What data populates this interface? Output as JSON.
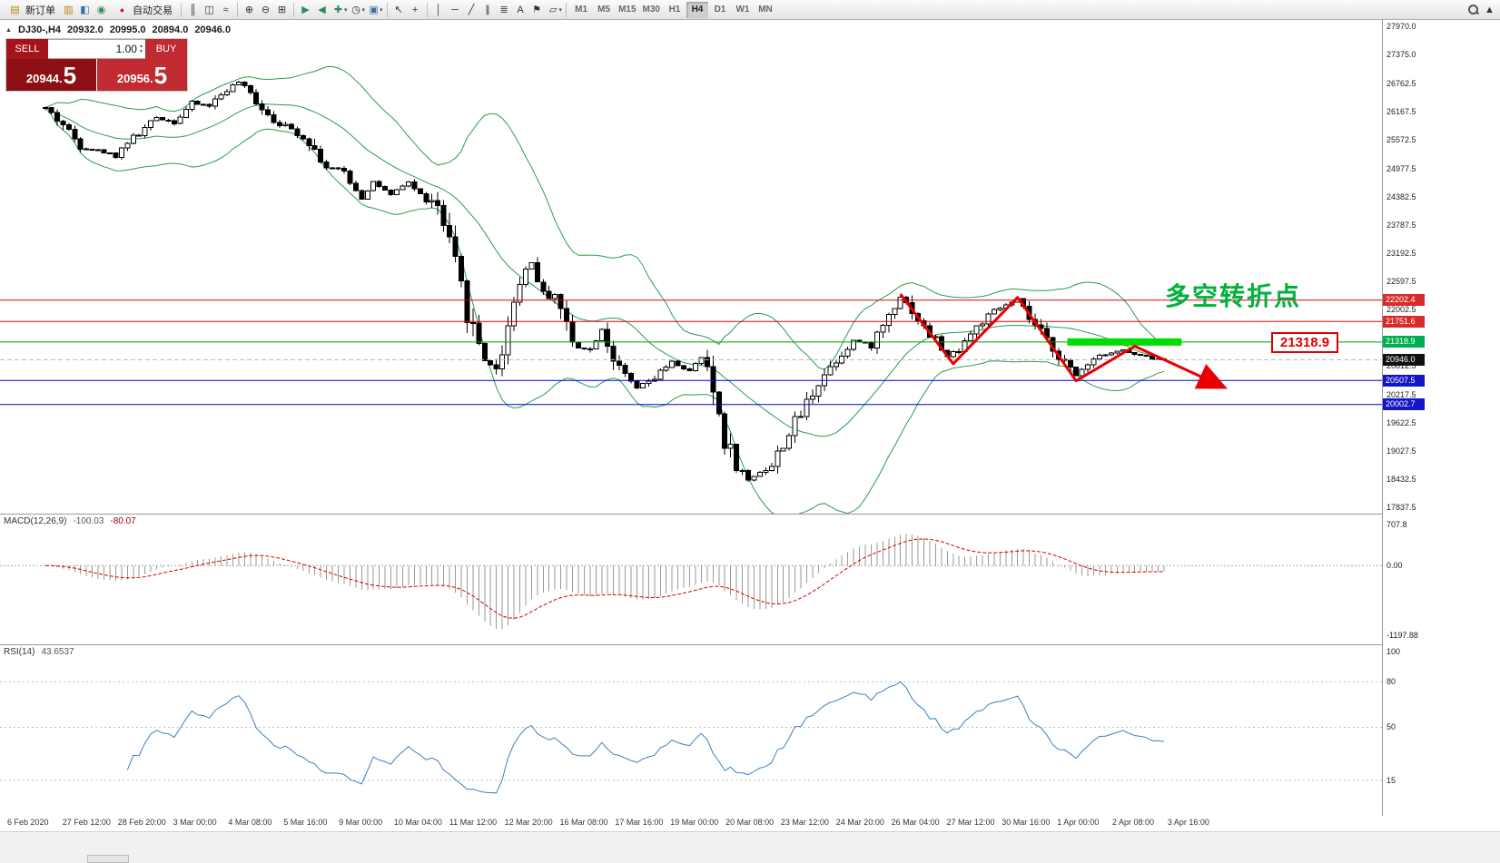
{
  "toolbar": {
    "new_order_label": "新订单",
    "auto_trading_label": "自动交易",
    "timeframes": [
      {
        "label": "M1",
        "active": false
      },
      {
        "label": "M5",
        "active": false
      },
      {
        "label": "M15",
        "active": false
      },
      {
        "label": "M30",
        "active": false
      },
      {
        "label": "H1",
        "active": false
      },
      {
        "label": "H4",
        "active": true
      },
      {
        "label": "D1",
        "active": false
      },
      {
        "label": "W1",
        "active": false
      },
      {
        "label": "MN",
        "active": false
      }
    ]
  },
  "icons": {
    "new_order": "▤",
    "market_watch": "▥",
    "data_window": "◧",
    "navigator": "◉",
    "auto_trading": "●",
    "chart_bars": "║",
    "chart_candles": "◫",
    "chart_line": "≈",
    "zoom_in": "⊕",
    "zoom_out": "⊖",
    "tile_windows": "⊞",
    "auto_scroll": "▶",
    "chart_shift": "◀",
    "indicators": "✚",
    "periods": "◷",
    "templates": "▣",
    "cursor": "↖",
    "crosshair": "+",
    "vline": "│",
    "hline": "─",
    "trendline": "╱",
    "channel": "∥",
    "fibonacci": "≣",
    "text_tool": "A",
    "label_tool": "⚑",
    "shapes": "▱",
    "caret": "▾",
    "scroll_up": "▲",
    "collapse": "▲",
    "spin_up": "▴",
    "spin_down": "▾"
  },
  "symbol_info": {
    "collapse": "▲",
    "symbol": "DJ30-,H4",
    "open": "20932.0",
    "high": "20995.0",
    "low": "20894.0",
    "close": "20946.0"
  },
  "quote_panel": {
    "sell_label": "SELL",
    "buy_label": "BUY",
    "volume": "1.00",
    "sell_price_main": "20944.",
    "sell_price_big": "5",
    "buy_price_main": "20956.",
    "buy_price_big": "5"
  },
  "price_axis": {
    "top_price": 27970.0,
    "bottom_price": 17837.5,
    "labels": [
      "27970.0",
      "27375.0",
      "26762.5",
      "26167.5",
      "25572.5",
      "24977.5",
      "24382.5",
      "23787.5",
      "23192.5",
      "22597.5",
      "22002.5",
      "20812.5",
      "20217.5",
      "19622.5",
      "19027.5",
      "18432.5",
      "17837.5"
    ],
    "tagged": [
      {
        "text": "22202.4",
        "price": 22202.4,
        "bg": "#d92b2b"
      },
      {
        "text": "21751.6",
        "price": 21751.6,
        "bg": "#d92b2b"
      },
      {
        "text": "21318.9",
        "price": 21318.9,
        "bg": "#00b050"
      },
      {
        "text": "20946.0",
        "price": 20946.0,
        "bg": "#111111"
      },
      {
        "text": "20507.5",
        "price": 20507.5,
        "bg": "#1414c8"
      },
      {
        "text": "20002.7",
        "price": 20002.7,
        "bg": "#1414c8"
      }
    ]
  },
  "hlines": [
    {
      "price": 22202.4,
      "color": "#e00000"
    },
    {
      "price": 21751.6,
      "color": "#e00000"
    },
    {
      "price": 21318.9,
      "color": "#00a000"
    },
    {
      "price": 20507.5,
      "color": "#0000dd"
    },
    {
      "price": 20002.7,
      "color": "#0000dd"
    }
  ],
  "macd": {
    "name": "MACD(12,26,9)",
    "value": "-100.03",
    "signal": "-80.07",
    "max": 707.8,
    "min": -1197.88,
    "scale": [
      {
        "text": "707.8",
        "v": 707.8
      },
      {
        "text": "0.00",
        "v": 0
      },
      {
        "text": "-1197.88",
        "v": -1197.88
      }
    ]
  },
  "rsi": {
    "name": "RSI(14)",
    "value": "43.6537",
    "scale": [
      {
        "text": "100",
        "v": 100
      },
      {
        "text": "80",
        "v": 80
      },
      {
        "text": "50",
        "v": 50
      },
      {
        "text": "15",
        "v": 15
      }
    ],
    "levels": [
      80,
      50,
      15
    ]
  },
  "time_axis": [
    "6 Feb 2020",
    "27 Feb 12:00",
    "28 Feb 20:00",
    "3 Mar 00:00",
    "4 Mar 08:00",
    "5 Mar 16:00",
    "9 Mar 00:00",
    "10 Mar 04:00",
    "11 Mar 12:00",
    "12 Mar 20:00",
    "16 Mar 08:00",
    "17 Mar 16:00",
    "19 Mar 00:00",
    "20 Mar 08:00",
    "23 Mar 12:00",
    "24 Mar 20:00",
    "26 Mar 04:00",
    "27 Mar 12:00",
    "30 Mar 16:00",
    "1 Apr 00:00",
    "2 Apr 08:00",
    "3 Apr 16:00"
  ],
  "annotations": {
    "turning_point_text": "多空转折点",
    "level_label": "21318.9",
    "green_segment": {
      "price": 21318.9,
      "i0": 174.5,
      "i1": 194
    },
    "trend_arrow_points": [
      [
        146,
        22330
      ],
      [
        155,
        20860
      ],
      [
        166,
        22260
      ],
      [
        176,
        20500
      ],
      [
        186,
        21230
      ],
      [
        201,
        20380
      ]
    ]
  },
  "chart_data": {
    "type": "candlestick",
    "symbol": "DJ30-",
    "timeframe": "H4",
    "ohlc_last": {
      "open": 20932.0,
      "high": 20995.0,
      "low": 20894.0,
      "close": 20946.0
    },
    "candles": 192,
    "price_waypoints": [
      [
        0,
        26250
      ],
      [
        3,
        25900
      ],
      [
        6,
        25450
      ],
      [
        9,
        25350
      ],
      [
        12,
        25250
      ],
      [
        14,
        25550
      ],
      [
        16,
        25700
      ],
      [
        19,
        26050
      ],
      [
        22,
        25950
      ],
      [
        25,
        26350
      ],
      [
        28,
        26300
      ],
      [
        31,
        26650
      ],
      [
        33,
        26800
      ],
      [
        36,
        26400
      ],
      [
        39,
        26000
      ],
      [
        42,
        25800
      ],
      [
        45,
        25550
      ],
      [
        48,
        25000
      ],
      [
        51,
        24900
      ],
      [
        54,
        24350
      ],
      [
        56,
        24700
      ],
      [
        59,
        24400
      ],
      [
        62,
        24700
      ],
      [
        64,
        24400
      ],
      [
        67,
        24150
      ],
      [
        69,
        23300
      ],
      [
        71,
        22400
      ],
      [
        73,
        21600
      ],
      [
        75,
        21000
      ],
      [
        77,
        20700
      ],
      [
        79,
        21700
      ],
      [
        81,
        22700
      ],
      [
        83,
        23000
      ],
      [
        85,
        22300
      ],
      [
        87,
        22350
      ],
      [
        90,
        21300
      ],
      [
        93,
        21150
      ],
      [
        95,
        21600
      ],
      [
        98,
        20700
      ],
      [
        101,
        20350
      ],
      [
        104,
        20550
      ],
      [
        107,
        20900
      ],
      [
        110,
        20700
      ],
      [
        112,
        21000
      ],
      [
        114,
        20300
      ],
      [
        116,
        19300
      ],
      [
        118,
        18750
      ],
      [
        120,
        18400
      ],
      [
        122,
        18600
      ],
      [
        124,
        18700
      ],
      [
        126,
        19200
      ],
      [
        129,
        19800
      ],
      [
        132,
        20500
      ],
      [
        135,
        20950
      ],
      [
        138,
        21350
      ],
      [
        141,
        21250
      ],
      [
        144,
        21900
      ],
      [
        146,
        22280
      ],
      [
        148,
        22000
      ],
      [
        150,
        21600
      ],
      [
        152,
        21350
      ],
      [
        154,
        21000
      ],
      [
        156,
        21200
      ],
      [
        158,
        21500
      ],
      [
        160,
        21750
      ],
      [
        162,
        21950
      ],
      [
        164,
        22100
      ],
      [
        166,
        22200
      ],
      [
        168,
        21800
      ],
      [
        170,
        21500
      ],
      [
        172,
        21200
      ],
      [
        174,
        20900
      ],
      [
        176,
        20600
      ],
      [
        178,
        20900
      ],
      [
        180,
        21050
      ],
      [
        182,
        21100
      ],
      [
        184,
        21150
      ],
      [
        186,
        21050
      ],
      [
        188,
        21000
      ],
      [
        190,
        20950
      ],
      [
        191,
        20946
      ]
    ],
    "indicators": {
      "bollinger": {
        "period": 20,
        "deviation": 2
      },
      "macd": {
        "fast": 12,
        "slow": 26,
        "signal": 9,
        "value": -100.03,
        "signal_value": -80.07
      },
      "rsi": {
        "period": 14,
        "value": 43.6537
      }
    },
    "horizontal_levels": [
      22202.4,
      21751.6,
      21318.9,
      20507.5,
      20002.7
    ]
  },
  "colors": {
    "bands": "#2a9d4e",
    "bull": "#ffffff",
    "bear": "#000000",
    "hline_red": "#e00000",
    "hline_green": "#00a000",
    "hline_blue": "#0000dd",
    "bid_dash": "#b8b8b8",
    "macd_hist": "#9a9a9a",
    "macd_signal": "#d40000",
    "rsi_line": "#3d7fc1",
    "arrow": "#e80000",
    "green_bar": "#00dd00",
    "annotation_green": "#00b23d",
    "annotation_red": "#e00000"
  }
}
